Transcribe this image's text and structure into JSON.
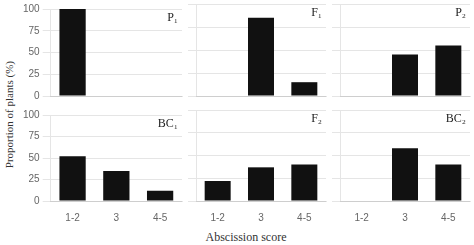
{
  "chart_data": [
    {
      "type": "bar",
      "annotations": [
        "P₁"
      ],
      "categories": [
        "1-2",
        "3",
        "4-5"
      ],
      "values": [
        100,
        0,
        0
      ],
      "color": "#111111",
      "ylim": [
        0,
        100
      ],
      "yticks": [
        0,
        25,
        50,
        75,
        100
      ],
      "grid": true,
      "tick_labels": "y"
    },
    {
      "type": "bar",
      "annotations": [
        "F₁"
      ],
      "categories": [
        "1-2",
        "3",
        "4-5"
      ],
      "values": [
        0,
        85,
        15
      ],
      "color": "#111111",
      "ylim": [
        0,
        100
      ],
      "yticks": [
        0,
        25,
        50,
        75,
        100
      ],
      "grid": true,
      "tick_labels": false
    },
    {
      "type": "bar",
      "annotations": [
        "P₂"
      ],
      "categories": [
        "1-2",
        "3",
        "4-5"
      ],
      "values": [
        0,
        45,
        55
      ],
      "color": "#111111",
      "ylim": [
        0,
        100
      ],
      "yticks": [
        0,
        25,
        50,
        75,
        100
      ],
      "grid": true,
      "tick_labels": false
    },
    {
      "type": "bar",
      "annotations": [
        "BC₁"
      ],
      "ylabel": "Proportion of plants (%)",
      "categories": [
        "1-2",
        "3",
        "4-5"
      ],
      "values": [
        52,
        35,
        12
      ],
      "color": "#111111",
      "ylim": [
        0,
        100
      ],
      "yticks": [
        0,
        25,
        50,
        75,
        100
      ],
      "grid": true
    },
    {
      "type": "bar",
      "annotations": [
        "F₂"
      ],
      "xlabel": "Abscission score",
      "categories": [
        "1-2",
        "3",
        "4-5"
      ],
      "values": [
        22,
        37,
        40
      ],
      "color": "#111111",
      "ylim": [
        0,
        100
      ],
      "yticks": [
        0,
        25,
        50,
        75,
        100
      ],
      "grid": true,
      "tick_labels": "x"
    },
    {
      "type": "bar",
      "annotations": [
        "BC₂"
      ],
      "categories": [
        "1-2",
        "3",
        "4-5"
      ],
      "values": [
        0,
        58,
        40
      ],
      "color": "#111111",
      "ylim": [
        0,
        100
      ],
      "yticks": [
        0,
        25,
        50,
        75,
        100
      ],
      "grid": true,
      "tick_labels": "x"
    }
  ]
}
